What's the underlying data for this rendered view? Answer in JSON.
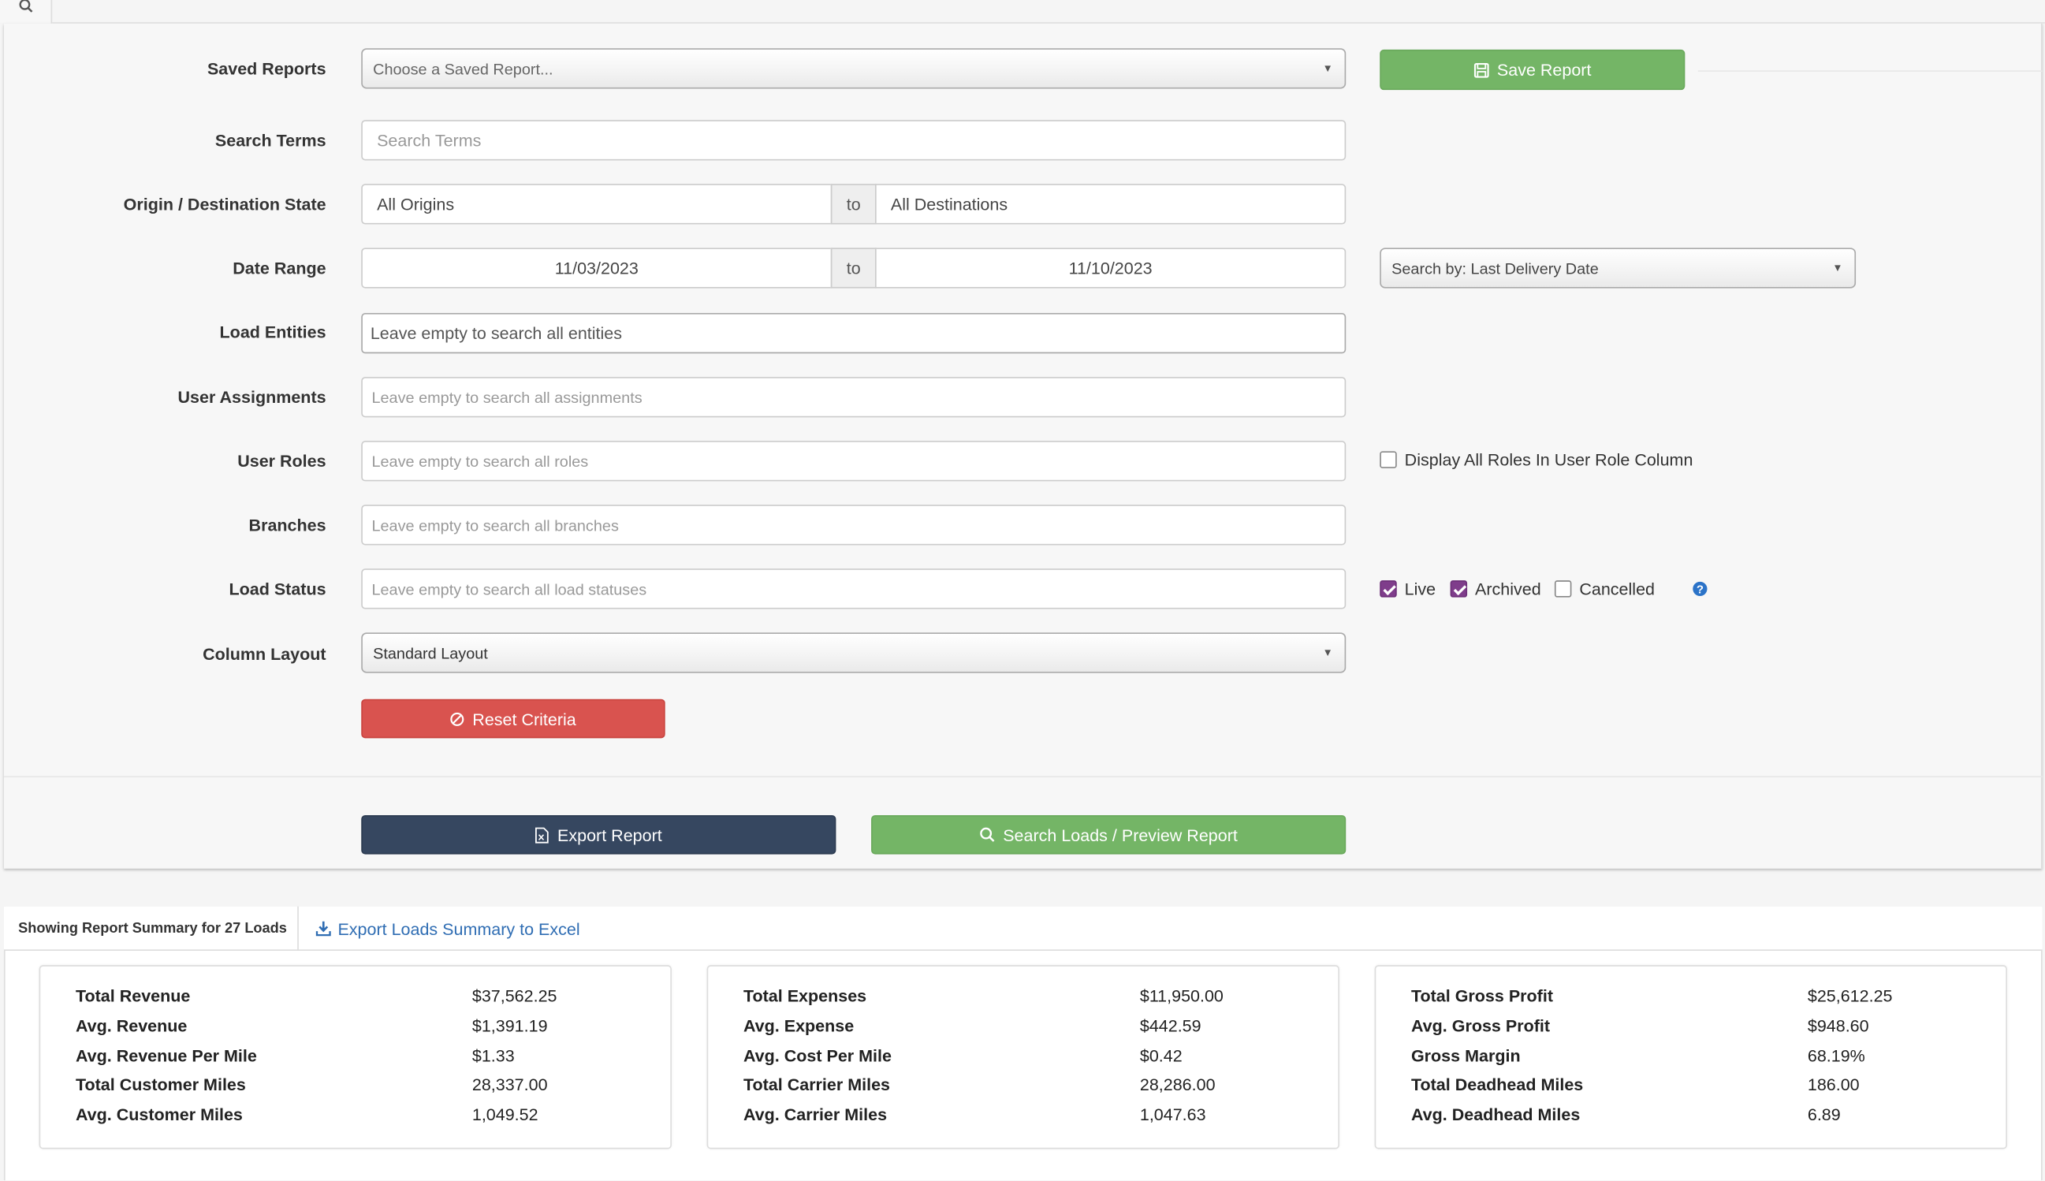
{
  "form": {
    "saved_reports": {
      "label": "Saved Reports",
      "placeholder": "Choose a Saved Report..."
    },
    "save_button": "Save Report",
    "search_terms": {
      "label": "Search Terms",
      "placeholder": "Search Terms"
    },
    "origin_destination": {
      "label": "Origin / Destination State",
      "origin": "All Origins",
      "connector": "to",
      "destination": "All Destinations"
    },
    "date_range": {
      "label": "Date Range",
      "start": "11/03/2023",
      "connector": "to",
      "end": "11/10/2023",
      "search_by": "Search by: Last Delivery Date"
    },
    "load_entities": {
      "label": "Load Entities",
      "placeholder": "Leave empty to search all entities"
    },
    "user_assignments": {
      "label": "User Assignments",
      "placeholder": "Leave empty to search all assignments"
    },
    "user_roles": {
      "label": "User Roles",
      "placeholder": "Leave empty to search all roles",
      "checkbox_label": "Display All Roles In User Role Column",
      "checkbox_checked": false
    },
    "branches": {
      "label": "Branches",
      "placeholder": "Leave empty to search all branches"
    },
    "load_status": {
      "label": "Load Status",
      "placeholder": "Leave empty to search all load statuses",
      "options": [
        {
          "label": "Live",
          "checked": true
        },
        {
          "label": "Archived",
          "checked": true
        },
        {
          "label": "Cancelled",
          "checked": false
        }
      ],
      "help": "?"
    },
    "column_layout": {
      "label": "Column Layout",
      "value": "Standard Layout"
    },
    "reset_button": "Reset Criteria",
    "export_button": "Export Report",
    "search_button": "Search Loads / Preview Report"
  },
  "summary": {
    "tab_label": "Showing Report Summary for 27 Loads",
    "export_link": "Export Loads Summary to Excel",
    "cards": [
      {
        "rows": [
          {
            "label": "Total Revenue",
            "value": "$37,562.25"
          },
          {
            "label": "Avg. Revenue",
            "value": "$1,391.19"
          },
          {
            "label": "Avg. Revenue Per Mile",
            "value": "$1.33"
          },
          {
            "label": "Total Customer Miles",
            "value": "28,337.00"
          },
          {
            "label": "Avg. Customer Miles",
            "value": "1,049.52"
          }
        ]
      },
      {
        "rows": [
          {
            "label": "Total Expenses",
            "value": "$11,950.00"
          },
          {
            "label": "Avg. Expense",
            "value": "$442.59"
          },
          {
            "label": "Avg. Cost Per Mile",
            "value": "$0.42"
          },
          {
            "label": "Total Carrier Miles",
            "value": "28,286.00"
          },
          {
            "label": "Avg. Carrier Miles",
            "value": "1,047.63"
          }
        ]
      },
      {
        "rows": [
          {
            "label": "Total Gross Profit",
            "value": "$25,612.25"
          },
          {
            "label": "Avg. Gross Profit",
            "value": "$948.60"
          },
          {
            "label": "Gross Margin",
            "value": "68.19%"
          },
          {
            "label": "Total Deadhead Miles",
            "value": "186.00"
          },
          {
            "label": "Avg. Deadhead Miles",
            "value": "6.89"
          }
        ]
      }
    ]
  },
  "colors": {
    "green": "#74b566",
    "red": "#d9534f",
    "navy": "#364760",
    "link": "#2f6db3",
    "checkbox": "#7f3d8b"
  }
}
